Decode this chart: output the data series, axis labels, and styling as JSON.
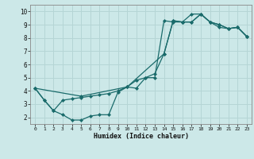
{
  "xlabel": "Humidex (Indice chaleur)",
  "bg_color": "#cce8e8",
  "grid_color": "#b5d5d5",
  "line_color": "#1a6b6b",
  "xlim": [
    -0.5,
    23.5
  ],
  "ylim": [
    1.5,
    10.5
  ],
  "xticks": [
    0,
    1,
    2,
    3,
    4,
    5,
    6,
    7,
    8,
    9,
    10,
    11,
    12,
    13,
    14,
    15,
    16,
    17,
    18,
    19,
    20,
    21,
    22,
    23
  ],
  "yticks": [
    2,
    3,
    4,
    5,
    6,
    7,
    8,
    9,
    10
  ],
  "line1_x": [
    0,
    1,
    2,
    3,
    4,
    5,
    6,
    7,
    8,
    9,
    10,
    11,
    12,
    13,
    14,
    15,
    16,
    17,
    18,
    19,
    20,
    21,
    22,
    23
  ],
  "line1_y": [
    4.2,
    3.3,
    2.5,
    3.3,
    3.4,
    3.5,
    3.6,
    3.7,
    3.8,
    4.0,
    4.3,
    4.8,
    5.0,
    5.3,
    6.8,
    9.3,
    9.2,
    9.2,
    9.8,
    9.2,
    9.0,
    8.7,
    8.8,
    8.1
  ],
  "line2_x": [
    0,
    1,
    2,
    3,
    4,
    5,
    6,
    7,
    8,
    9,
    10,
    11,
    12,
    13,
    14,
    15,
    16,
    17,
    18,
    19,
    20,
    21,
    22,
    23
  ],
  "line2_y": [
    4.2,
    3.3,
    2.5,
    2.2,
    1.8,
    1.8,
    2.1,
    2.2,
    2.2,
    3.9,
    4.3,
    4.2,
    5.0,
    5.0,
    9.3,
    9.2,
    9.2,
    9.8,
    9.8,
    9.2,
    8.8,
    8.7,
    8.8,
    8.1
  ],
  "line3_x": [
    0,
    5,
    10,
    14,
    15,
    16,
    17,
    18,
    19,
    20,
    21,
    22,
    23
  ],
  "line3_y": [
    4.2,
    3.6,
    4.3,
    6.8,
    9.3,
    9.2,
    9.2,
    9.8,
    9.2,
    9.0,
    8.7,
    8.8,
    8.1
  ]
}
